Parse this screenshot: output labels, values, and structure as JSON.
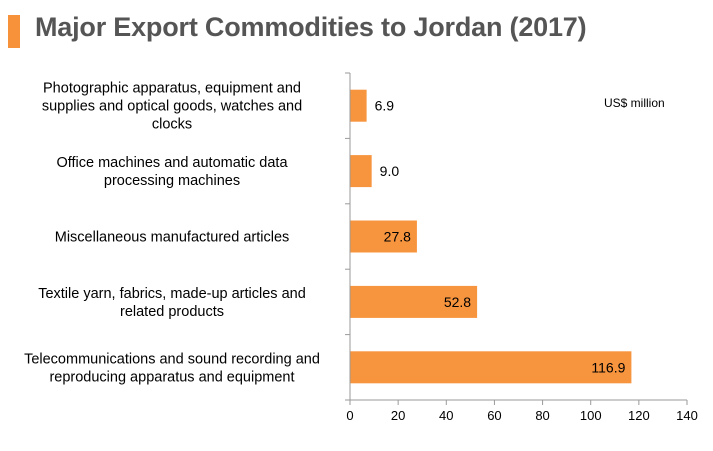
{
  "chart_data": {
    "type": "bar",
    "orientation": "horizontal",
    "title": "Major Export Commodities to Jordan (2017)",
    "unit_label": "US$ million",
    "categories": [
      [
        "Photographic apparatus, equipment and",
        "supplies and optical goods, watches and",
        "clocks"
      ],
      [
        "Office machines and automatic data",
        "processing machines"
      ],
      [
        "Miscellaneous manufactured articles"
      ],
      [
        "Textile yarn, fabrics, made-up articles and",
        "related products"
      ],
      [
        "Telecommunications and sound recording and",
        "reproducing apparatus and equipment"
      ]
    ],
    "values": [
      6.9,
      9.0,
      27.8,
      52.8,
      116.9
    ],
    "value_labels": [
      "6.9",
      "9.0",
      "27.8",
      "52.8",
      "116.9"
    ],
    "xlim": [
      0,
      140
    ],
    "xticks": [
      0,
      20,
      40,
      60,
      80,
      100,
      120,
      140
    ],
    "xtick_labels": [
      "0",
      "20",
      "40",
      "60",
      "80",
      "100",
      "120",
      "140"
    ],
    "grid": false,
    "legend": "none",
    "bar_color": "#f7943e",
    "accent_color": "#f7923a",
    "title_color": "#555555"
  }
}
